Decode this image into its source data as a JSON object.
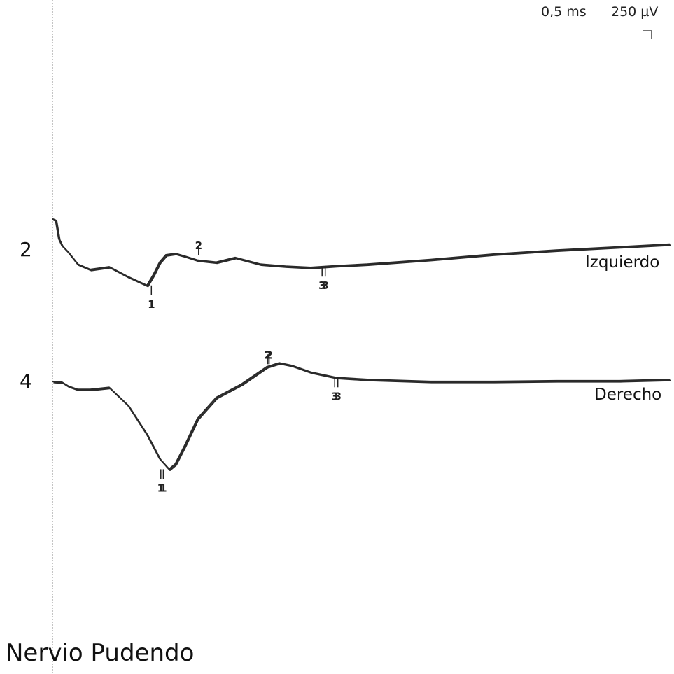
{
  "header": {
    "time_scale": "0,5 ms",
    "amplitude_scale": "250 µV"
  },
  "title": "Nervio Pudendo",
  "chart_data": {
    "type": "line",
    "title": "Nervio Pudendo",
    "x_unit": "ms",
    "y_unit": "µV",
    "x_division_ms": 0.5,
    "y_division_uV": 250,
    "grid": false,
    "line_color": "#2a2a2a",
    "traces": [
      {
        "number": "2",
        "name": "Izquierdo",
        "samples_ms": [
          0,
          0.05,
          0.1,
          0.15,
          0.25,
          0.4,
          0.6,
          0.9,
          1.2,
          1.5,
          1.6,
          1.7,
          1.8,
          1.95,
          2.1,
          2.3,
          2.6,
          2.9,
          3.3,
          3.7,
          4.1,
          4.5,
          5,
          6,
          7,
          8,
          9,
          9.8
        ],
        "samples_uV": [
          380,
          370,
          230,
          180,
          130,
          40,
          0,
          20,
          -55,
          -120,
          -40,
          55,
          110,
          120,
          100,
          70,
          55,
          90,
          40,
          25,
          15,
          28,
          40,
          75,
          115,
          145,
          170,
          190
        ],
        "markers": [
          {
            "label": "1",
            "t_ms": 1.57,
            "uV": -120,
            "side": "below"
          },
          {
            "label": "2",
            "t_ms": 2.32,
            "uV": 110,
            "side": "above"
          },
          {
            "label": "3",
            "t_ms": 4.28,
            "uV": 20,
            "side": "below"
          },
          {
            "label": "3",
            "t_ms": 4.33,
            "uV": 20,
            "side": "below"
          }
        ]
      },
      {
        "number": "4",
        "name": "Derecho",
        "samples_ms": [
          0,
          0.15,
          0.25,
          0.4,
          0.6,
          0.9,
          1.2,
          1.5,
          1.7,
          1.85,
          1.95,
          2.1,
          2.3,
          2.6,
          3,
          3.4,
          3.6,
          3.8,
          4.1,
          4.5,
          5,
          6,
          7,
          8,
          9,
          9.8
        ],
        "samples_uV": [
          0,
          -5,
          -35,
          -60,
          -60,
          -45,
          -180,
          -400,
          -580,
          -660,
          -620,
          -480,
          -280,
          -120,
          -20,
          110,
          140,
          120,
          70,
          30,
          15,
          0,
          0,
          5,
          5,
          15
        ],
        "markers": [
          {
            "label": "1",
            "t_ms": 1.72,
            "uV": -660,
            "side": "below"
          },
          {
            "label": "1",
            "t_ms": 1.76,
            "uV": -660,
            "side": "below"
          },
          {
            "label": "2",
            "t_ms": 3.42,
            "uV": 130,
            "side": "above"
          },
          {
            "label": "2",
            "t_ms": 3.44,
            "uV": 130,
            "side": "above"
          },
          {
            "label": "3",
            "t_ms": 4.48,
            "uV": 30,
            "side": "below"
          },
          {
            "label": "3",
            "t_ms": 4.53,
            "uV": 30,
            "side": "below"
          }
        ]
      }
    ]
  }
}
